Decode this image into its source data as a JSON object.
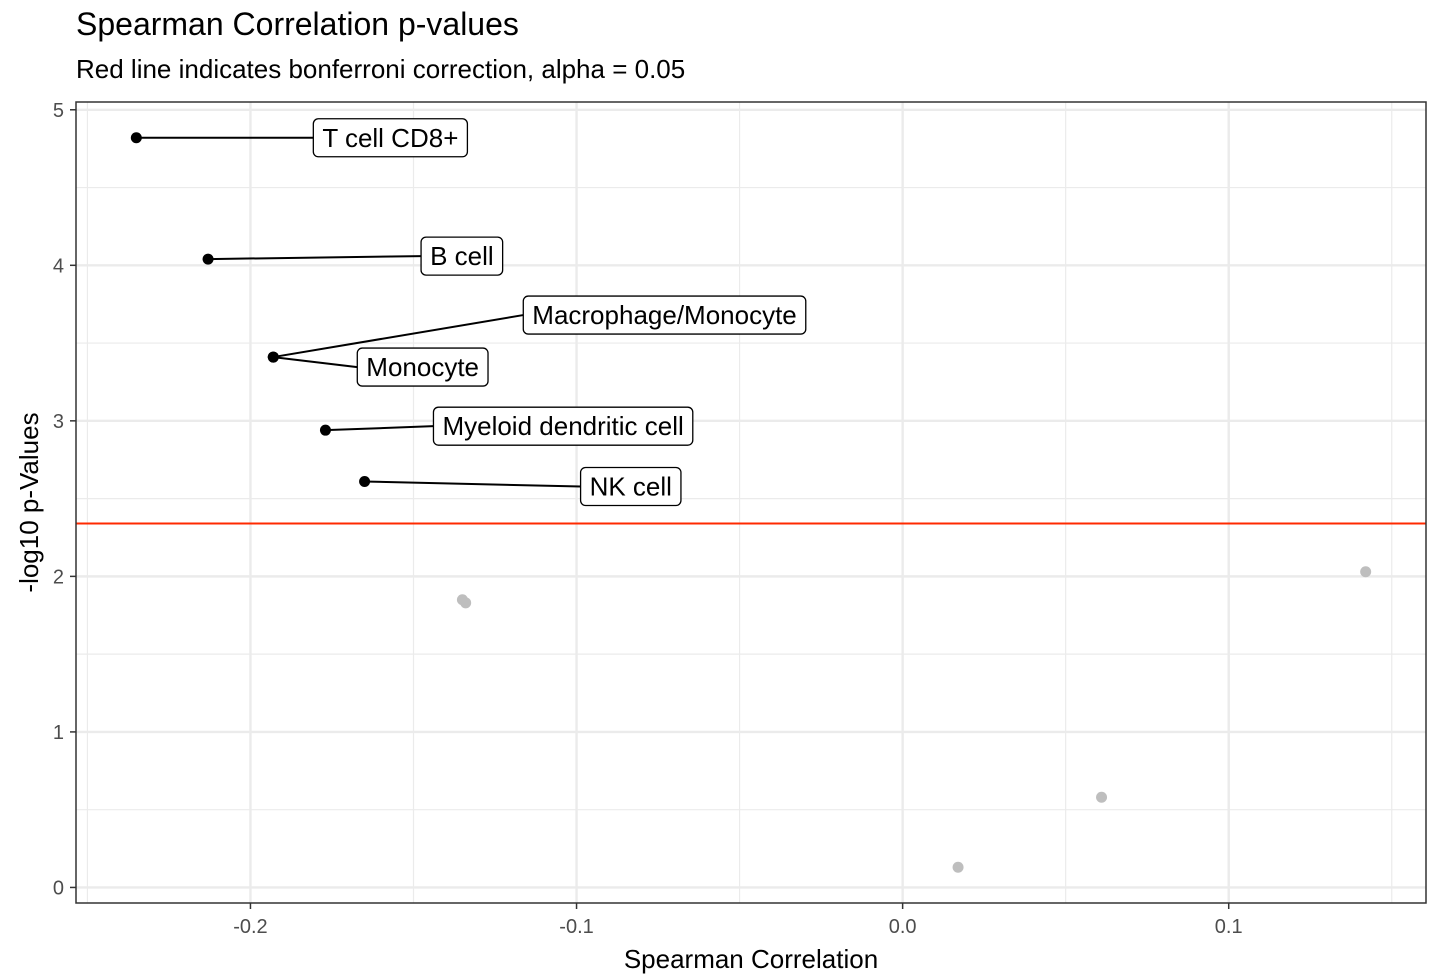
{
  "chart_data": {
    "type": "scatter",
    "title": "Spearman Correlation p-values",
    "subtitle": "Red line indicates bonferroni correction, alpha = 0.05",
    "xlabel": "Spearman Correlation",
    "ylabel": "-log10 p-Values",
    "xlim": [
      -0.2535,
      0.1605
    ],
    "ylim": [
      -0.1,
      5.05
    ],
    "x_ticks": [
      -0.2,
      -0.1,
      0.0,
      0.1
    ],
    "x_tick_labels": [
      "-0.2",
      "-0.1",
      "0.0",
      "0.1"
    ],
    "y_ticks": [
      0,
      1,
      2,
      3,
      4,
      5
    ],
    "y_tick_labels": [
      "0",
      "1",
      "2",
      "3",
      "4",
      "5"
    ],
    "grid": true,
    "threshold": {
      "y": 2.34,
      "color": "#ff2a00"
    },
    "points": [
      {
        "x": -0.235,
        "y": 4.82,
        "significant": true,
        "label": "T cell CD8+"
      },
      {
        "x": -0.213,
        "y": 4.04,
        "significant": true,
        "label": "B cell"
      },
      {
        "x": -0.193,
        "y": 3.41,
        "significant": true,
        "label": "Macrophage/Monocyte"
      },
      {
        "x": -0.193,
        "y": 3.41,
        "significant": true,
        "label": "Monocyte"
      },
      {
        "x": -0.177,
        "y": 2.94,
        "significant": true,
        "label": "Myeloid dendritic cell"
      },
      {
        "x": -0.165,
        "y": 2.61,
        "significant": true,
        "label": "NK cell"
      },
      {
        "x": -0.135,
        "y": 1.85,
        "significant": false,
        "label": ""
      },
      {
        "x": -0.134,
        "y": 1.83,
        "significant": false,
        "label": ""
      },
      {
        "x": 0.017,
        "y": 0.13,
        "significant": false,
        "label": ""
      },
      {
        "x": 0.061,
        "y": 0.58,
        "significant": false,
        "label": ""
      },
      {
        "x": 0.142,
        "y": 2.03,
        "significant": false,
        "label": ""
      }
    ],
    "colors": {
      "significant": "#000000",
      "not_significant": "#bebebe",
      "grid": "#ebebeb"
    }
  }
}
